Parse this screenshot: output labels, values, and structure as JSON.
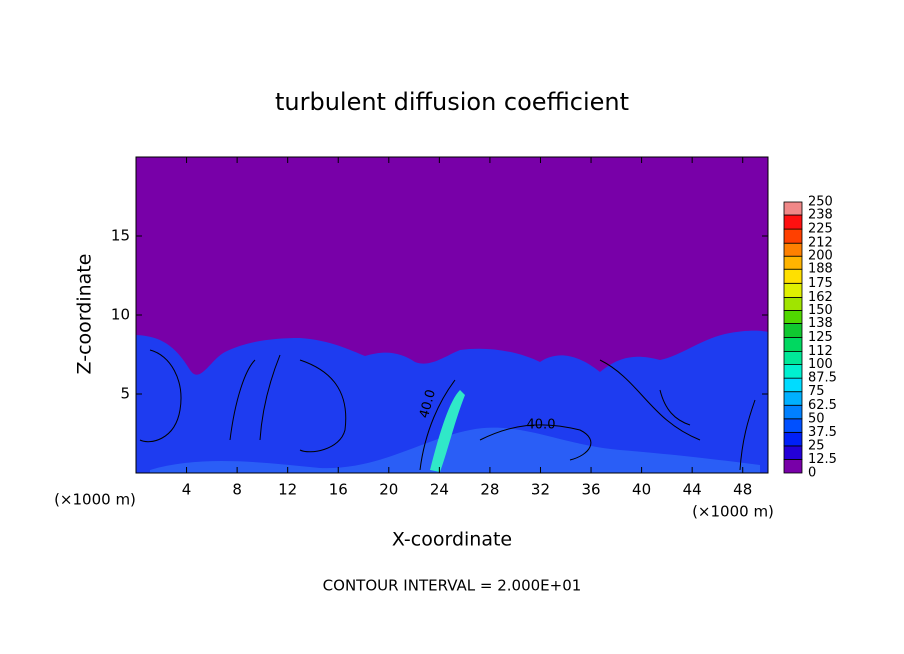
{
  "chart_data": {
    "type": "contour",
    "title": "turbulent diffusion coefficient",
    "x_label": "X-coordinate",
    "y_label": "Z-coordinate",
    "x_unit": "(×1000 m)",
    "footer": "CONTOUR INTERVAL = 2.000E+01",
    "contour_labels": [
      "40.0",
      "40.0"
    ],
    "xlim": [
      0,
      50
    ],
    "ylim": [
      0,
      20
    ],
    "xticks": [
      4,
      8,
      12,
      16,
      20,
      24,
      28,
      32,
      36,
      40,
      44,
      48
    ],
    "yticks": [
      5,
      10,
      15
    ],
    "colorbar": {
      "lim": [
        0,
        250
      ],
      "ticks": [
        0,
        12.5,
        25,
        37.5,
        50,
        62.5,
        75,
        87.5,
        100,
        112,
        125,
        138,
        150,
        162,
        175,
        188,
        200,
        212,
        225,
        238,
        250
      ],
      "colors": [
        "#7800a8",
        "#2400d8",
        "#0020f8",
        "#0050ff",
        "#0080ff",
        "#00b0ff",
        "#00dcff",
        "#00f0d0",
        "#00e898",
        "#00d860",
        "#10c830",
        "#50d800",
        "#a0e400",
        "#e0f000",
        "#ffe000",
        "#ffb400",
        "#ff8000",
        "#ff4000",
        "#ff1010",
        "#f08888"
      ]
    }
  }
}
